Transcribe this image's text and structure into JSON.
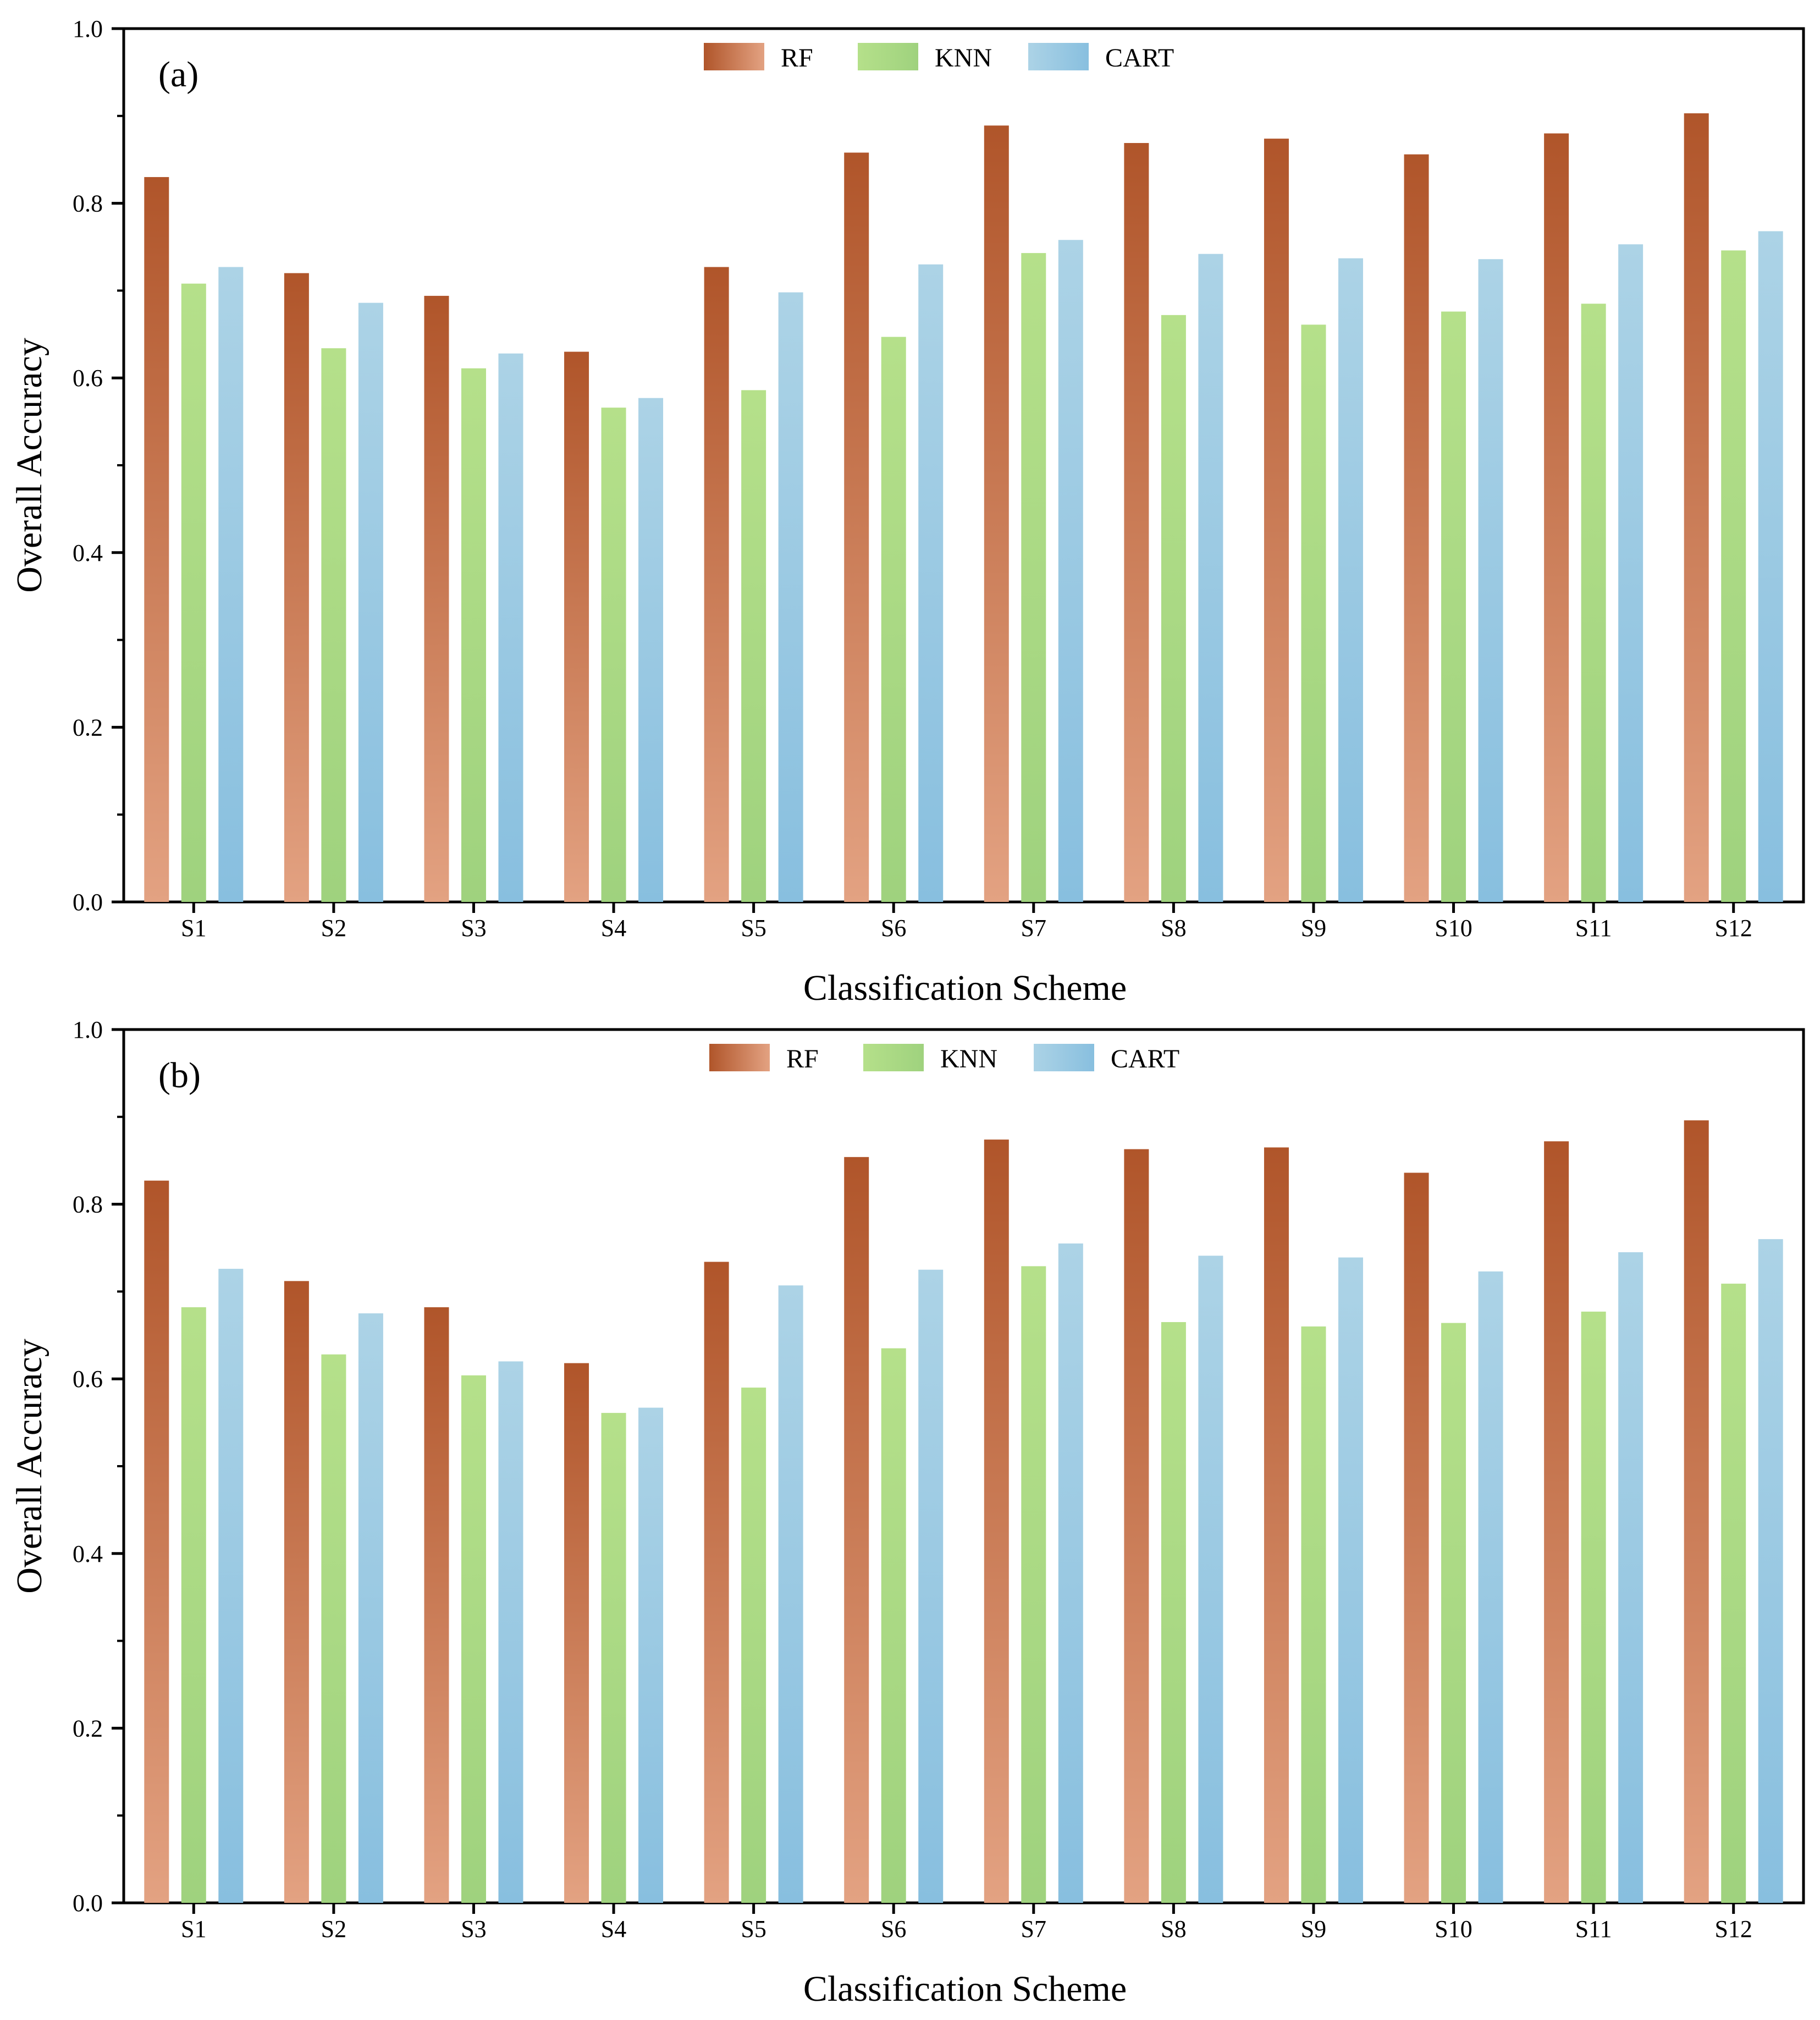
{
  "chart_data": [
    {
      "type": "bar",
      "panel_label": "(a)",
      "title": "",
      "xlabel": "Classification Scheme",
      "ylabel": "Overall Accuracy",
      "ylim": [
        0,
        1.0
      ],
      "yticks": [
        "0.0",
        "0.2",
        "0.4",
        "0.6",
        "0.8",
        "1.0"
      ],
      "categories": [
        "S1",
        "S2",
        "S3",
        "S4",
        "S5",
        "S6",
        "S7",
        "S8",
        "S9",
        "S10",
        "S11",
        "S12"
      ],
      "legend_position": "top-center",
      "series": [
        {
          "name": "RF",
          "values": [
            0.83,
            0.72,
            0.694,
            0.63,
            0.727,
            0.858,
            0.889,
            0.869,
            0.874,
            0.856,
            0.88,
            0.903
          ]
        },
        {
          "name": "KNN",
          "values": [
            0.708,
            0.634,
            0.611,
            0.566,
            0.586,
            0.647,
            0.743,
            0.672,
            0.661,
            0.676,
            0.685,
            0.746
          ]
        },
        {
          "name": "CART",
          "values": [
            0.727,
            0.686,
            0.628,
            0.577,
            0.698,
            0.73,
            0.758,
            0.742,
            0.737,
            0.736,
            0.753,
            0.768
          ]
        }
      ]
    },
    {
      "type": "bar",
      "panel_label": "(b)",
      "title": "",
      "xlabel": "Classification Scheme",
      "ylabel": "Overall Accuracy",
      "ylim": [
        0,
        1.0
      ],
      "yticks": [
        "0.0",
        "0.2",
        "0.4",
        "0.6",
        "0.8",
        "1.0"
      ],
      "categories": [
        "S1",
        "S2",
        "S3",
        "S4",
        "S5",
        "S6",
        "S7",
        "S8",
        "S9",
        "S10",
        "S11",
        "S12"
      ],
      "legend_position": "top-center",
      "series": [
        {
          "name": "RF",
          "values": [
            0.827,
            0.712,
            0.682,
            0.618,
            0.734,
            0.854,
            0.874,
            0.863,
            0.865,
            0.836,
            0.872,
            0.896
          ]
        },
        {
          "name": "KNN",
          "values": [
            0.682,
            0.628,
            0.604,
            0.561,
            0.59,
            0.635,
            0.729,
            0.665,
            0.66,
            0.664,
            0.677,
            0.709
          ]
        },
        {
          "name": "CART",
          "values": [
            0.726,
            0.675,
            0.62,
            0.567,
            0.707,
            0.725,
            0.755,
            0.741,
            0.739,
            0.723,
            0.745,
            0.76
          ]
        }
      ]
    }
  ],
  "colors": {
    "RF_top": "#b0552a",
    "RF_bottom": "#e3a282",
    "KNN_top": "#b5e08a",
    "KNN_bottom": "#9fd27e",
    "CART_top": "#acd3e6",
    "CART_bottom": "#88bfdf",
    "axis": "#000000"
  }
}
